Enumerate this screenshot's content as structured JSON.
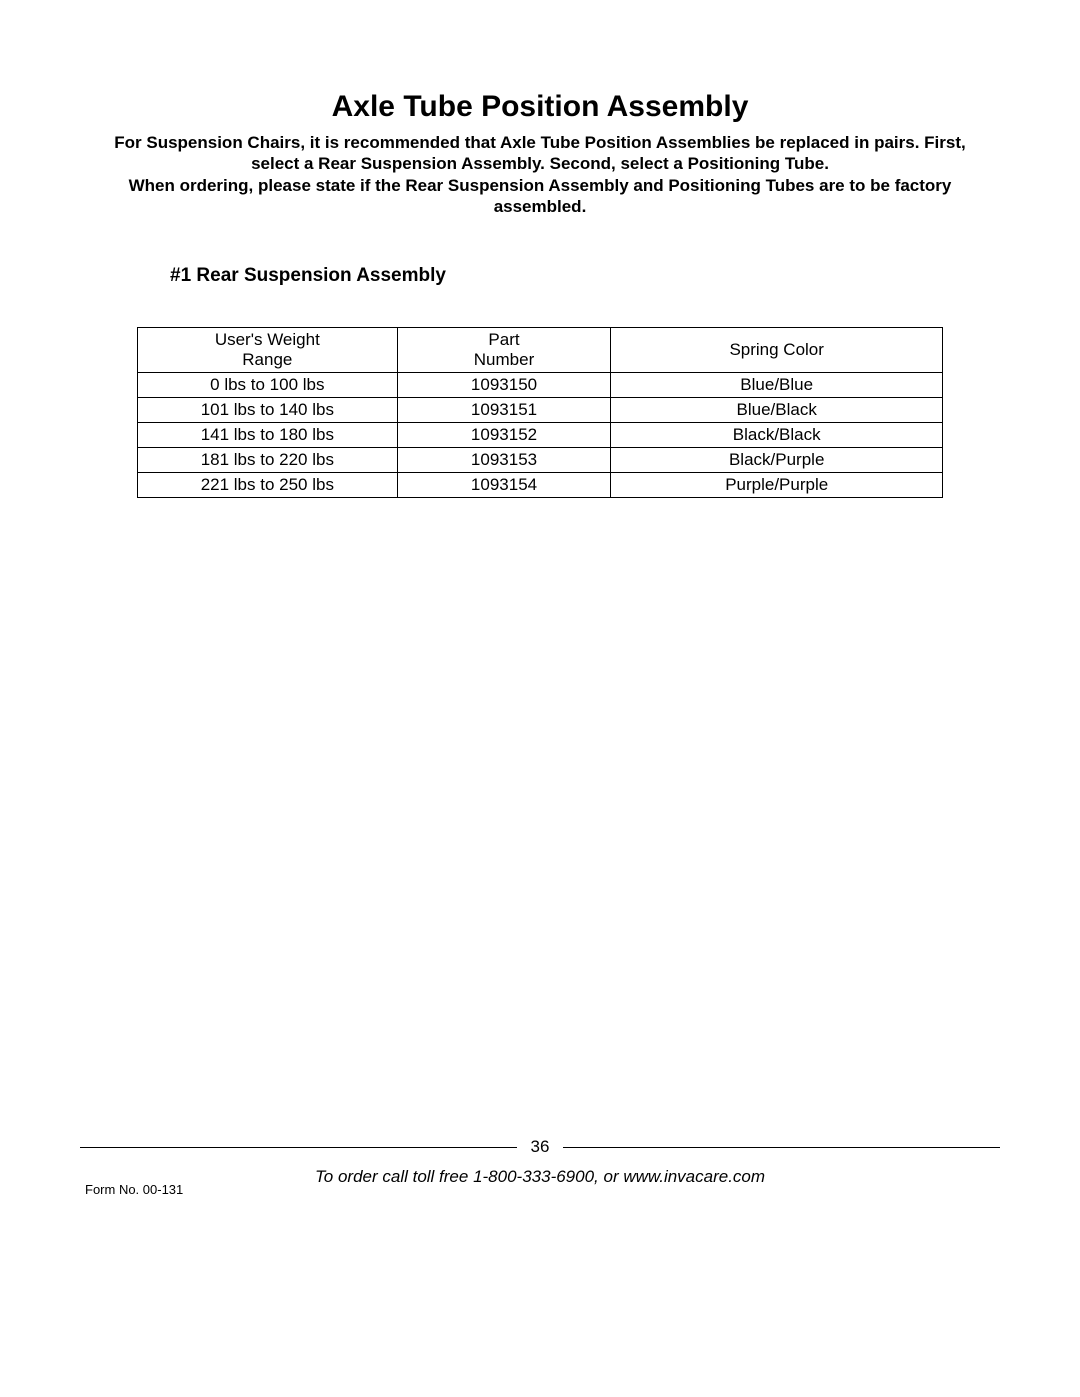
{
  "title": "Axle Tube Position Assembly",
  "intro_lines": [
    "For Suspension Chairs, it is recommended that Axle Tube Position Assemblies be replaced in pairs. First,",
    "select a Rear Suspension Assembly. Second, select a Positioning Tube.",
    "When ordering, please state if the Rear Suspension Assembly and Positioning Tubes are to be factory",
    "assembled."
  ],
  "section_heading": "#1  Rear Suspension Assembly",
  "table": {
    "columns": [
      {
        "line1": "User's Weight",
        "line2": "Range"
      },
      {
        "line1": "Part",
        "line2": "Number"
      },
      {
        "line1": "Spring Color",
        "line2": ""
      }
    ],
    "rows": [
      {
        "weight": "0 lbs to 100 lbs",
        "part": "1093150",
        "spring": "Blue/Blue"
      },
      {
        "weight": "101 lbs to 140 lbs",
        "part": "1093151",
        "spring": "Blue/Black"
      },
      {
        "weight": "141 lbs to 180 lbs",
        "part": "1093152",
        "spring": "Black/Black"
      },
      {
        "weight": "181 lbs to 220 lbs",
        "part": "1093153",
        "spring": "Black/Purple"
      },
      {
        "weight": "221 lbs to 250 lbs",
        "part": "1093154",
        "spring": "Purple/Purple"
      }
    ]
  },
  "page_number": "36",
  "order_line": "To order call toll free 1-800-333-6900, or www.invacare.com",
  "form_no": "Form No. 00-131"
}
